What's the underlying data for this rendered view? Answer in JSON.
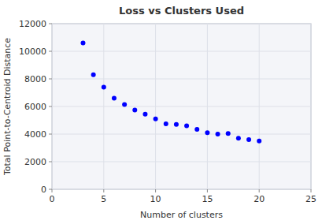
{
  "chart_data": {
    "type": "scatter",
    "title": "Loss vs Clusters Used",
    "x_label": "Number of clusters",
    "y_label": "Total Point-to-Centroid Distance",
    "x": [
      3,
      4,
      5,
      6,
      7,
      8,
      9,
      10,
      11,
      12,
      13,
      14,
      15,
      16,
      17,
      18,
      19,
      20
    ],
    "values": [
      10600,
      8300,
      7400,
      6600,
      6150,
      5750,
      5450,
      5100,
      4750,
      4700,
      4600,
      4350,
      4100,
      4000,
      4050,
      3700,
      3600,
      3500
    ],
    "color": "blue",
    "xlim": [
      0,
      25
    ],
    "ylim": [
      0,
      12000
    ],
    "xticks": [
      0,
      5,
      10,
      15,
      20,
      25
    ],
    "yticks": [
      0,
      2000,
      4000,
      6000,
      8000,
      10000,
      12000
    ],
    "grid": true
  }
}
